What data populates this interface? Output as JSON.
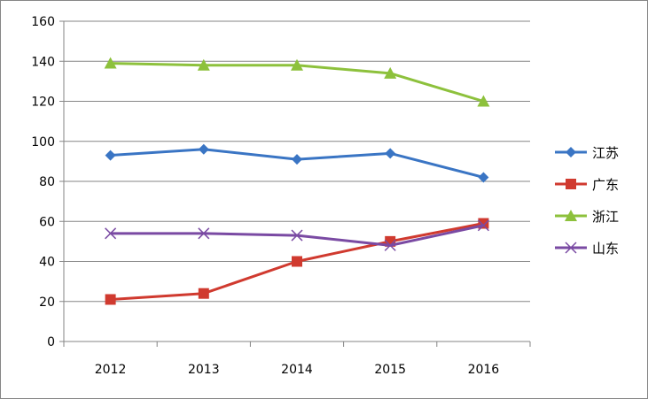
{
  "chart_data": {
    "type": "line",
    "title": "",
    "xlabel": "",
    "ylabel": "",
    "categories": [
      "2012",
      "2013",
      "2014",
      "2015",
      "2016"
    ],
    "ylim": [
      0,
      160
    ],
    "yticks": [
      0,
      20,
      40,
      60,
      80,
      100,
      120,
      140,
      160
    ],
    "grid": "horizontal",
    "legend_position": "right",
    "series": [
      {
        "name": "江苏",
        "color": "#3a75c4",
        "marker": "diamond",
        "values": [
          93,
          96,
          91,
          94,
          82
        ]
      },
      {
        "name": "广东",
        "color": "#d03a2f",
        "marker": "square",
        "values": [
          21,
          24,
          40,
          50,
          59
        ]
      },
      {
        "name": "浙江",
        "color": "#8dc13c",
        "marker": "triangle",
        "values": [
          139,
          138,
          138,
          134,
          120
        ]
      },
      {
        "name": "山东",
        "color": "#7a4aa3",
        "marker": "x",
        "values": [
          54,
          54,
          53,
          48,
          58
        ]
      }
    ]
  }
}
